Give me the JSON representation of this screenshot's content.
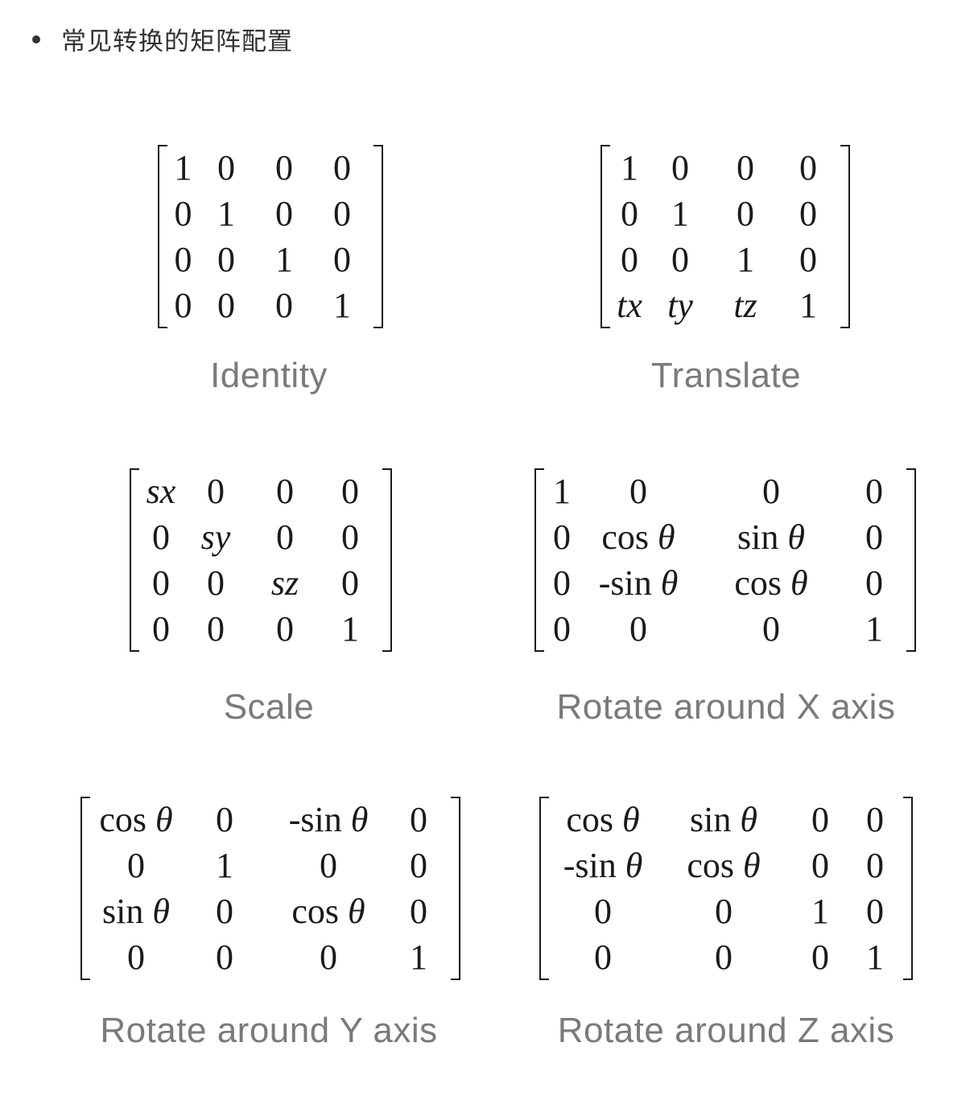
{
  "heading": "常见转换的矩阵配置",
  "matrices": {
    "identity": {
      "caption": "Identity",
      "rows": [
        [
          "1",
          "0",
          "0",
          "0"
        ],
        [
          "0",
          "1",
          "0",
          "0"
        ],
        [
          "0",
          "0",
          "1",
          "0"
        ],
        [
          "0",
          "0",
          "0",
          "1"
        ]
      ]
    },
    "translate": {
      "caption": "Translate",
      "rows": [
        [
          "1",
          "0",
          "0",
          "0"
        ],
        [
          "0",
          "1",
          "0",
          "0"
        ],
        [
          "0",
          "0",
          "1",
          "0"
        ],
        [
          "tx",
          "ty",
          "tz",
          "1"
        ]
      ]
    },
    "scale": {
      "caption": "Scale",
      "rows": [
        [
          "sx",
          "0",
          "0",
          "0"
        ],
        [
          "0",
          "sy",
          "0",
          "0"
        ],
        [
          "0",
          "0",
          "sz",
          "0"
        ],
        [
          "0",
          "0",
          "0",
          "1"
        ]
      ]
    },
    "rotate_x": {
      "caption": "Rotate around X axis",
      "rows": [
        [
          "1",
          "0",
          "0",
          "0"
        ],
        [
          "0",
          "cos θ",
          "sin θ",
          "0"
        ],
        [
          "0",
          "-sin θ",
          "cos θ",
          "0"
        ],
        [
          "0",
          "0",
          "0",
          "1"
        ]
      ]
    },
    "rotate_y": {
      "caption": "Rotate around Y axis",
      "rows": [
        [
          "cos θ",
          "0",
          "-sin θ",
          "0"
        ],
        [
          "0",
          "1",
          "0",
          "0"
        ],
        [
          "sin θ",
          "0",
          "cos θ",
          "0"
        ],
        [
          "0",
          "0",
          "0",
          "1"
        ]
      ]
    },
    "rotate_z": {
      "caption": "Rotate around Z axis",
      "rows": [
        [
          "cos θ",
          "sin θ",
          "0",
          "0"
        ],
        [
          "-sin θ",
          "cos θ",
          "0",
          "0"
        ],
        [
          "0",
          "0",
          "1",
          "0"
        ],
        [
          "0",
          "0",
          "0",
          "1"
        ]
      ]
    }
  }
}
